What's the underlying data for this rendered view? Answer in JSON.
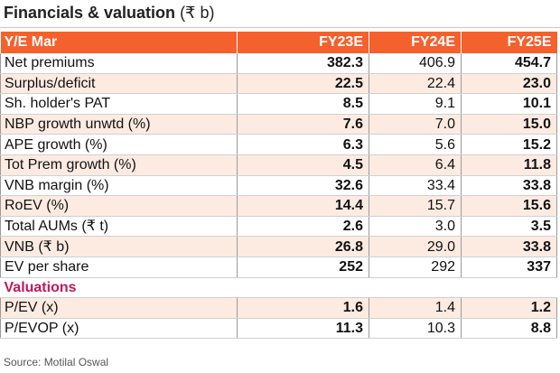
{
  "title": {
    "main": "Financials & valuation",
    "unit": "(₹ b)"
  },
  "columns": [
    "Y/E Mar",
    "FY23E",
    "FY24E",
    "FY25E"
  ],
  "rows": [
    {
      "label": "Net  premiums",
      "values": [
        "382.3",
        "406.9",
        "454.7"
      ]
    },
    {
      "label": "Surplus/deficit",
      "values": [
        "22.5",
        "22.4",
        "23.0"
      ]
    },
    {
      "label": "Sh. holder's PAT",
      "values": [
        "8.5",
        "9.1",
        "10.1"
      ]
    },
    {
      "label": "NBP growth  unwtd (%)",
      "values": [
        "7.6",
        "7.0",
        "15.0"
      ]
    },
    {
      "label": "APE growth (%)",
      "values": [
        "6.3",
        "5.6",
        "15.2"
      ]
    },
    {
      "label": "Tot  Prem growth (%)",
      "values": [
        "4.5",
        "6.4",
        "11.8"
      ]
    },
    {
      "label": "VNB margin (%)",
      "values": [
        "32.6",
        "33.4",
        "33.8"
      ]
    },
    {
      "label": "RoEV (%)",
      "values": [
        "14.4",
        "15.7",
        "15.6"
      ]
    },
    {
      "label": "Total AUMs (₹ t)",
      "values": [
        "2.6",
        "3.0",
        "3.5"
      ]
    },
    {
      "label": "VNB (₹ b)",
      "values": [
        "26.8",
        "29.0",
        "33.8"
      ]
    },
    {
      "label": "EV per share",
      "values": [
        "252",
        "292",
        "337"
      ]
    }
  ],
  "section": "Valuations",
  "valuation_rows": [
    {
      "label": "P/EV (x)",
      "values": [
        "1.6",
        "1.4",
        "1.2"
      ]
    },
    {
      "label": "P/EVOP (x)",
      "values": [
        "11.3",
        "10.3",
        "8.8"
      ]
    }
  ],
  "source": "Source: Motilal Oswal",
  "colors": {
    "header_bg": "#f4612c",
    "shade_bg": "#fdebe2",
    "section_text": "#c0185a"
  }
}
